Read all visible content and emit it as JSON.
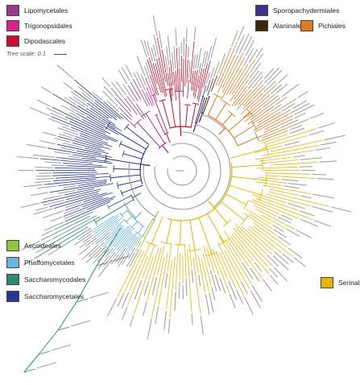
{
  "legend": {
    "items": [
      {
        "key": "lipomycetales",
        "label": "Lipomycetales",
        "color": "#9b3a8c"
      },
      {
        "key": "trigonopsidales",
        "label": "Trigonopsidales",
        "color": "#d6248a"
      },
      {
        "key": "dipodascales",
        "label": "Dipodascales",
        "color": "#c8102e"
      },
      {
        "key": "sporopachydermiales",
        "label": "Sporopachydermiales",
        "color": "#3f2f8f"
      },
      {
        "key": "alaninales",
        "label": "Alaninales",
        "color": "#3b2a10"
      },
      {
        "key": "pichiales",
        "label": "Pichiales",
        "color": "#e07a22"
      },
      {
        "key": "ascoideales",
        "label": "Ascoideales",
        "color": "#8dc63f"
      },
      {
        "key": "phaffomycetales",
        "label": "Phaffomycetales",
        "color": "#6cb4e0"
      },
      {
        "key": "saccharomycodales",
        "label": "Saccharomycodales",
        "color": "#2e8b72"
      },
      {
        "key": "saccharomycetales",
        "label": "Saccharomycetales",
        "color": "#283593"
      },
      {
        "key": "serinales",
        "label": "Serinales",
        "color": "#e8b400"
      }
    ]
  },
  "tree_scale": {
    "label": "Tree scale: 0.1"
  },
  "colors": {
    "backbone": "#9a9a9a",
    "tip_text": "#555555"
  },
  "tree_data": {
    "layout": "circular",
    "clades": [
      {
        "key": "lipomycetales",
        "start_deg": 222,
        "end_deg": 243,
        "tips": 10
      },
      {
        "key": "trigonopsidales",
        "start_deg": 243,
        "end_deg": 251,
        "tips": 5
      },
      {
        "key": "dipodascales",
        "start_deg": 251,
        "end_deg": 285,
        "tips": 30
      },
      {
        "key": "sporopachydermiales",
        "start_deg": 285,
        "end_deg": 288,
        "tips": 2
      },
      {
        "key": "alaninales",
        "start_deg": 288,
        "end_deg": 291,
        "tips": 2
      },
      {
        "key": "pichiales",
        "start_deg": 291,
        "end_deg": 340,
        "tips": 34
      },
      {
        "key": "serinales",
        "start_deg": 340,
        "end_deg": 478,
        "tips": 80
      },
      {
        "key": "ascoideales",
        "start_deg": 478,
        "end_deg": 482,
        "tips": 3
      },
      {
        "key": "phaffomycetales",
        "start_deg": 482,
        "end_deg": 507,
        "tips": 22
      },
      {
        "key": "saccharomycodales",
        "start_deg": 507,
        "end_deg": 516,
        "tips": 6
      },
      {
        "key": "saccharomycetales",
        "start_deg": 516,
        "end_deg": 582,
        "tips": 56
      }
    ]
  }
}
